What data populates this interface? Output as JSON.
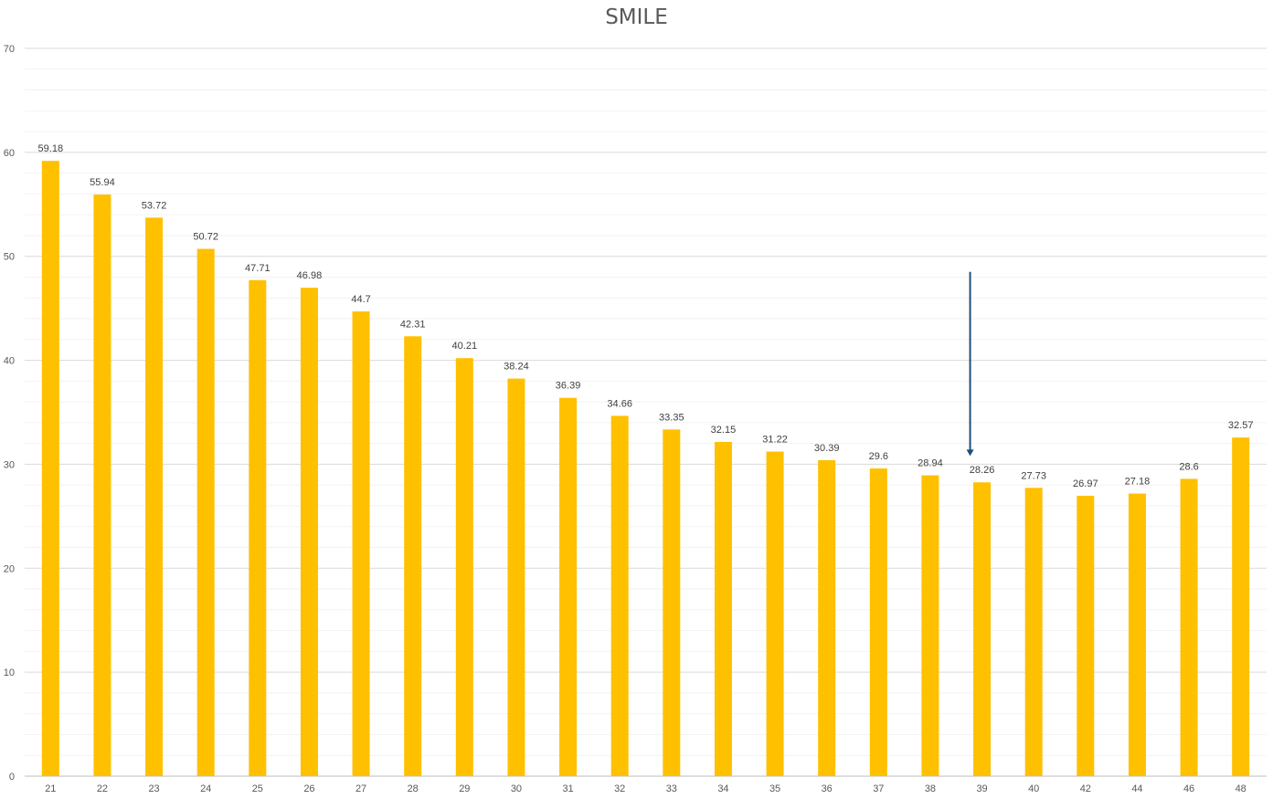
{
  "chart_data": {
    "type": "bar",
    "title": "SMILE",
    "xlabel": "",
    "ylabel": "",
    "categories": [
      "21",
      "22",
      "23",
      "24",
      "25",
      "26",
      "27",
      "28",
      "29",
      "30",
      "31",
      "32",
      "33",
      "34",
      "35",
      "36",
      "37",
      "38",
      "39",
      "40",
      "42",
      "44",
      "46",
      "48"
    ],
    "values": [
      59.18,
      55.94,
      53.72,
      50.72,
      47.71,
      46.98,
      44.7,
      42.31,
      40.21,
      38.24,
      36.39,
      34.66,
      33.35,
      32.15,
      31.22,
      30.39,
      29.6,
      28.94,
      28.26,
      27.73,
      26.97,
      27.18,
      28.6,
      32.57
    ],
    "value_labels": [
      "59.18",
      "55.94",
      "53.72",
      "50.72",
      "47.71",
      "46.98",
      "44.7",
      "42.31",
      "40.21",
      "38.24",
      "36.39",
      "34.66",
      "33.35",
      "32.15",
      "31.22",
      "30.39",
      "29.6",
      "28.94",
      "28.26",
      "27.73",
      "26.97",
      "27.18",
      "28.6",
      "32.57"
    ],
    "ylim": [
      0,
      70
    ],
    "yticks": [
      "0",
      "10",
      "20",
      "30",
      "40",
      "50",
      "60",
      "70"
    ],
    "grid": true,
    "minor_grid": true,
    "bar_color": "#FFC000",
    "annotation": {
      "type": "arrow",
      "points_to_category": "39",
      "y_start": 48.5,
      "y_end": 30.8,
      "color": "#1F4E79"
    }
  }
}
